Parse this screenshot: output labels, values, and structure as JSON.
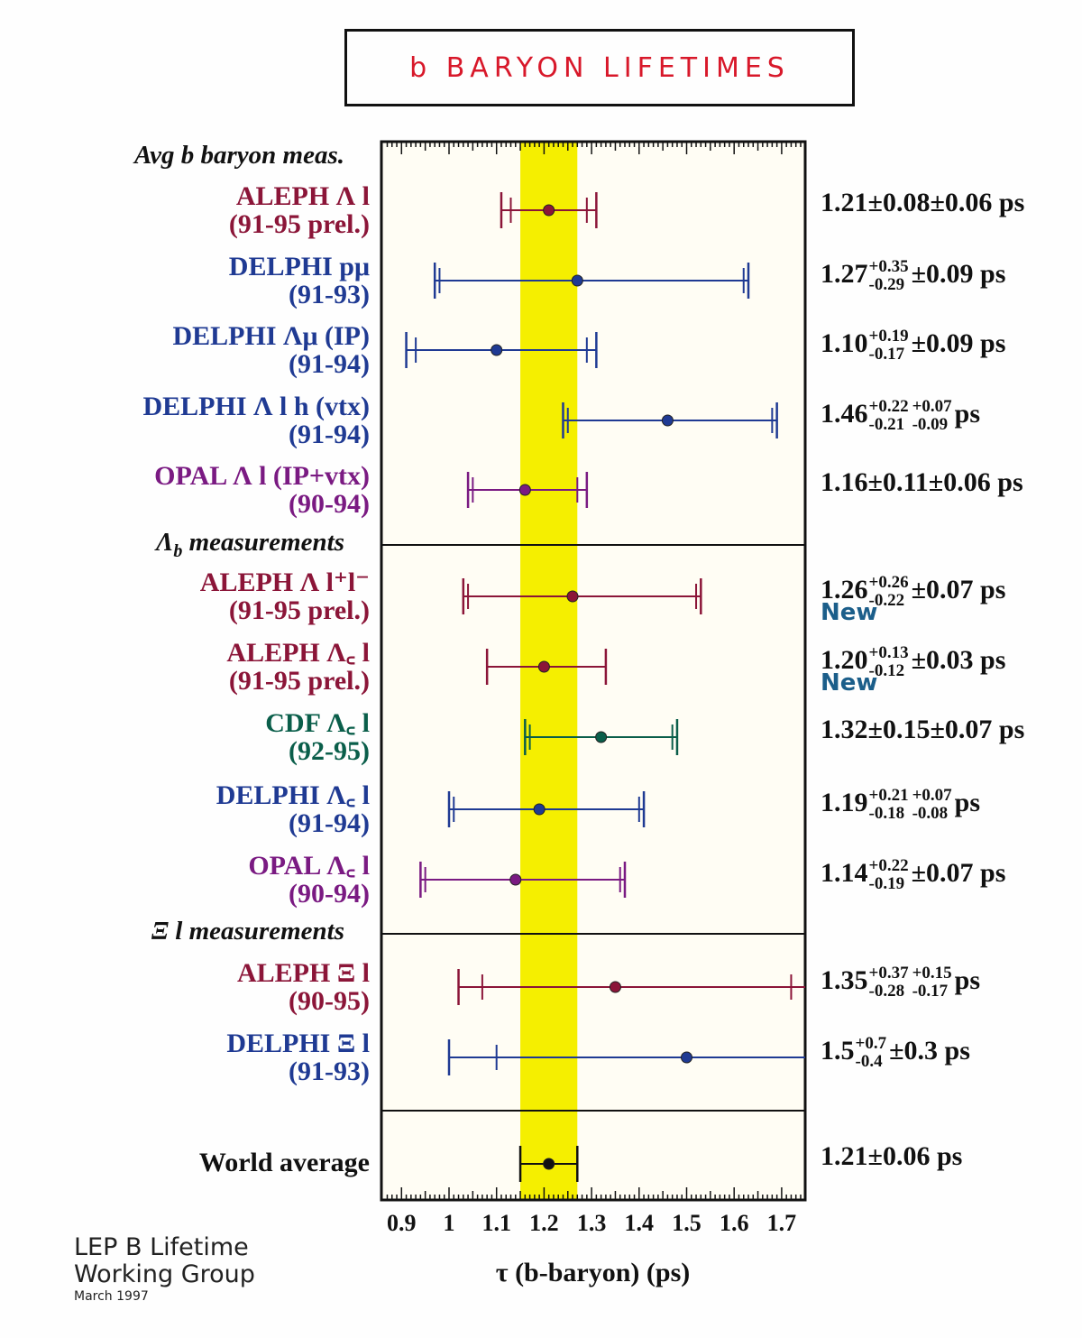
{
  "title": "b BARYON LIFETIMES",
  "footer": {
    "line1": "LEP B Lifetime",
    "line2": "Working Group",
    "line3": "March 1997"
  },
  "colors": {
    "band": "#f5ef00",
    "maroon": "#8b1538",
    "blue": "#1f3a93",
    "purple": "#7a1a82",
    "green": "#0a5e4a",
    "black": "#111111",
    "new_tag": "#1b5e8a"
  },
  "chart_data": {
    "type": "scatter",
    "subtype": "horizontal error-bar plot",
    "xlabel": "τ (b-baryon) (ps)",
    "xlim": [
      0.86,
      1.75
    ],
    "xticks": [
      {
        "value": 0.9,
        "label": "0.9"
      },
      {
        "value": 1.0,
        "label": "1"
      },
      {
        "value": 1.1,
        "label": "1.1"
      },
      {
        "value": 1.2,
        "label": "1.2"
      },
      {
        "value": 1.3,
        "label": "1.3"
      },
      {
        "value": 1.4,
        "label": "1.4"
      },
      {
        "value": 1.5,
        "label": "1.5"
      },
      {
        "value": 1.6,
        "label": "1.6"
      },
      {
        "value": 1.7,
        "label": "1.7"
      }
    ],
    "band": {
      "low": 1.15,
      "high": 1.27
    },
    "sections": [
      {
        "header": "Avg b baryon meas.",
        "header_sub": "",
        "header_rest": "",
        "items": [
          {
            "label": "ALEPH Λ l",
            "period": "(91-95 prel.)",
            "color": "maroon",
            "value": 1.21,
            "stat_lo": 1.13,
            "stat_hi": 1.29,
            "tot_lo": 1.11,
            "tot_hi": 1.31,
            "text": {
              "main": "1.21±0.08±0.06 ps",
              "sup": "",
              "sub": "",
              "sup2": "",
              "sub2": "",
              "tail": ""
            },
            "new": ""
          },
          {
            "label": "DELPHI pμ",
            "period": "(91-93)",
            "color": "blue",
            "value": 1.27,
            "stat_lo": 0.98,
            "stat_hi": 1.62,
            "tot_lo": 0.97,
            "tot_hi": 1.63,
            "text": {
              "main": "1.27",
              "sup": "+0.35",
              "sub": "-0.29",
              "sup2": "",
              "sub2": "",
              "tail": "±0.09 ps"
            },
            "new": ""
          },
          {
            "label": "DELPHI Λμ (IP)",
            "period": "(91-94)",
            "color": "blue",
            "value": 1.1,
            "stat_lo": 0.93,
            "stat_hi": 1.29,
            "tot_lo": 0.91,
            "tot_hi": 1.31,
            "text": {
              "main": "1.10",
              "sup": "+0.19",
              "sub": "-0.17",
              "sup2": "",
              "sub2": "",
              "tail": "±0.09 ps"
            },
            "new": ""
          },
          {
            "label": "DELPHI Λ l h (vtx)",
            "period": "(91-94)",
            "color": "blue",
            "value": 1.46,
            "stat_lo": 1.25,
            "stat_hi": 1.68,
            "tot_lo": 1.24,
            "tot_hi": 1.69,
            "text": {
              "main": "1.46",
              "sup": "+0.22",
              "sub": "-0.21",
              "sup2": "+0.07",
              "sub2": "-0.09",
              "tail": "ps"
            },
            "new": ""
          },
          {
            "label": "OPAL Λ l (IP+vtx)",
            "period": "(90-94)",
            "color": "purple",
            "value": 1.16,
            "stat_lo": 1.05,
            "stat_hi": 1.27,
            "tot_lo": 1.04,
            "tot_hi": 1.29,
            "text": {
              "main": "1.16±0.11±0.06 ps",
              "sup": "",
              "sub": "",
              "sup2": "",
              "sub2": "",
              "tail": ""
            },
            "new": ""
          }
        ]
      },
      {
        "header": "Λ",
        "header_sub": "b",
        "header_rest": " measurements",
        "items": [
          {
            "label": "ALEPH Λ l⁺l⁻",
            "period": "(91-95 prel.)",
            "color": "maroon",
            "value": 1.26,
            "stat_lo": 1.04,
            "stat_hi": 1.52,
            "tot_lo": 1.03,
            "tot_hi": 1.53,
            "text": {
              "main": "1.26",
              "sup": "+0.26",
              "sub": "-0.22",
              "sup2": "",
              "sub2": "",
              "tail": "±0.07 ps"
            },
            "new": "New"
          },
          {
            "label": "ALEPH Λ꜀ l",
            "period": "(91-95 prel.)",
            "color": "maroon",
            "value": 1.2,
            "stat_lo": 1.08,
            "stat_hi": 1.33,
            "tot_lo": 1.08,
            "tot_hi": 1.33,
            "text": {
              "main": "1.20",
              "sup": "+0.13",
              "sub": "-0.12",
              "sup2": "",
              "sub2": "",
              "tail": "±0.03 ps"
            },
            "new": "New"
          },
          {
            "label": "CDF  Λ꜀ l",
            "period": "(92-95)",
            "color": "green",
            "value": 1.32,
            "stat_lo": 1.17,
            "stat_hi": 1.47,
            "tot_lo": 1.16,
            "tot_hi": 1.48,
            "text": {
              "main": "1.32±0.15±0.07 ps",
              "sup": "",
              "sub": "",
              "sup2": "",
              "sub2": "",
              "tail": ""
            },
            "new": ""
          },
          {
            "label": "DELPHI Λ꜀ l",
            "period": "(91-94)",
            "color": "blue",
            "value": 1.19,
            "stat_lo": 1.01,
            "stat_hi": 1.4,
            "tot_lo": 1.0,
            "tot_hi": 1.41,
            "text": {
              "main": "1.19",
              "sup": "+0.21",
              "sub": "-0.18",
              "sup2": "+0.07",
              "sub2": "-0.08",
              "tail": "ps"
            },
            "new": ""
          },
          {
            "label": "OPAL Λ꜀ l",
            "period": "(90-94)",
            "color": "purple",
            "value": 1.14,
            "stat_lo": 0.95,
            "stat_hi": 1.36,
            "tot_lo": 0.94,
            "tot_hi": 1.37,
            "text": {
              "main": "1.14",
              "sup": "+0.22",
              "sub": "-0.19",
              "sup2": "",
              "sub2": "",
              "tail": "±0.07 ps"
            },
            "new": ""
          }
        ]
      },
      {
        "header": "Ξ l measurements",
        "header_sub": "",
        "header_rest": "",
        "items": [
          {
            "label": "ALEPH Ξ l",
            "period": "(90-95)",
            "color": "maroon",
            "value": 1.35,
            "stat_lo": 1.07,
            "stat_hi": 1.72,
            "tot_lo": 1.02,
            "tot_hi": 1.75,
            "text": {
              "main": "1.35",
              "sup": "+0.37",
              "sub": "-0.28",
              "sup2": "+0.15",
              "sub2": "-0.17",
              "tail": "ps"
            },
            "new": ""
          },
          {
            "label": "DELPHI Ξ l",
            "period": "(91-93)",
            "color": "blue",
            "value": 1.5,
            "stat_lo": 1.1,
            "stat_hi": 1.75,
            "tot_lo": 1.0,
            "tot_hi": 1.75,
            "text": {
              "main": "1.5",
              "sup": "+0.7",
              "sub": "-0.4",
              "sup2": "",
              "sub2": "",
              "tail": "±0.3 ps"
            },
            "new": ""
          }
        ]
      },
      {
        "header": "",
        "header_sub": "",
        "header_rest": "",
        "items": [
          {
            "label": "World average",
            "period": "",
            "color": "black",
            "value": 1.21,
            "stat_lo": 1.15,
            "stat_hi": 1.27,
            "tot_lo": 1.15,
            "tot_hi": 1.27,
            "text": {
              "main": "1.21±0.06 ps",
              "sup": "",
              "sub": "",
              "sup2": "",
              "sub2": "",
              "tail": ""
            },
            "new": ""
          }
        ]
      }
    ]
  }
}
